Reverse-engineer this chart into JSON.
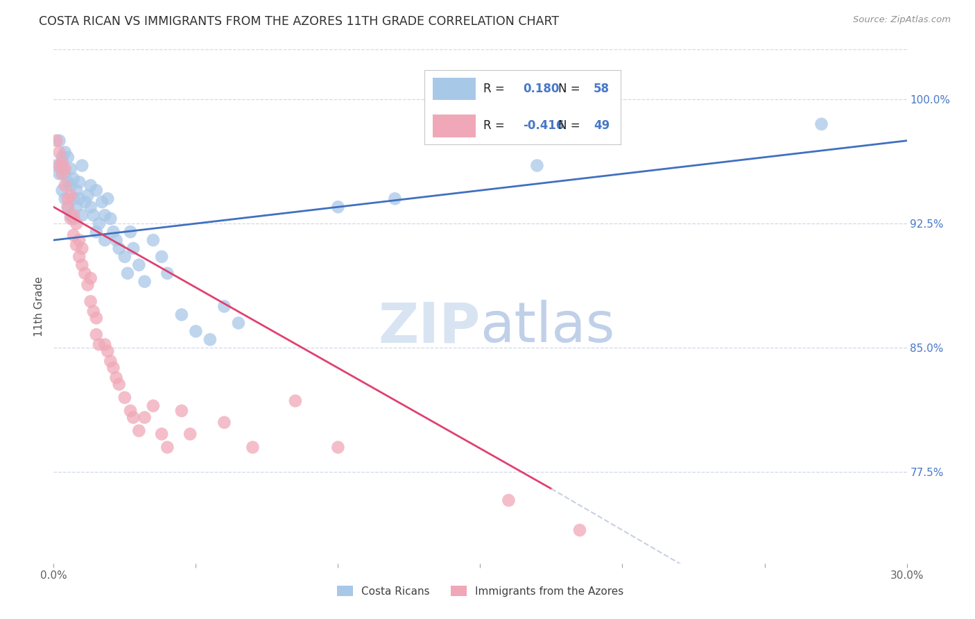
{
  "title": "COSTA RICAN VS IMMIGRANTS FROM THE AZORES 11TH GRADE CORRELATION CHART",
  "source": "Source: ZipAtlas.com",
  "ylabel": "11th Grade",
  "ytick_labels": [
    "100.0%",
    "92.5%",
    "85.0%",
    "77.5%"
  ],
  "ytick_values": [
    1.0,
    0.925,
    0.85,
    0.775
  ],
  "xlim": [
    0.0,
    0.3
  ],
  "ylim": [
    0.72,
    1.03
  ],
  "legend_r_blue": "0.180",
  "legend_n_blue": "58",
  "legend_r_pink": "-0.416",
  "legend_n_pink": "49",
  "blue_color": "#a8c8e8",
  "pink_color": "#f0a8b8",
  "blue_line_color": "#4070c0",
  "pink_line_color": "#e04070",
  "dashed_line_color": "#c8d0e0",
  "grid_color": "#d0d8e8",
  "title_color": "#303030",
  "right_axis_color": "#4878c8",
  "legend_text_color": "#202020",
  "source_color": "#909090",
  "ylabel_color": "#505050",
  "xtick_color": "#606060",
  "blue_scatter": [
    [
      0.001,
      0.96
    ],
    [
      0.002,
      0.955
    ],
    [
      0.002,
      0.975
    ],
    [
      0.003,
      0.965
    ],
    [
      0.003,
      0.958
    ],
    [
      0.003,
      0.945
    ],
    [
      0.004,
      0.955
    ],
    [
      0.004,
      0.94
    ],
    [
      0.004,
      0.968
    ],
    [
      0.005,
      0.95
    ],
    [
      0.005,
      0.935
    ],
    [
      0.005,
      0.965
    ],
    [
      0.006,
      0.948
    ],
    [
      0.006,
      0.93
    ],
    [
      0.006,
      0.958
    ],
    [
      0.007,
      0.94
    ],
    [
      0.007,
      0.952
    ],
    [
      0.007,
      0.928
    ],
    [
      0.008,
      0.945
    ],
    [
      0.008,
      0.935
    ],
    [
      0.009,
      0.94
    ],
    [
      0.009,
      0.95
    ],
    [
      0.01,
      0.93
    ],
    [
      0.01,
      0.96
    ],
    [
      0.011,
      0.938
    ],
    [
      0.012,
      0.942
    ],
    [
      0.013,
      0.935
    ],
    [
      0.013,
      0.948
    ],
    [
      0.014,
      0.93
    ],
    [
      0.015,
      0.92
    ],
    [
      0.015,
      0.945
    ],
    [
      0.016,
      0.925
    ],
    [
      0.017,
      0.938
    ],
    [
      0.018,
      0.93
    ],
    [
      0.018,
      0.915
    ],
    [
      0.019,
      0.94
    ],
    [
      0.02,
      0.928
    ],
    [
      0.021,
      0.92
    ],
    [
      0.022,
      0.915
    ],
    [
      0.023,
      0.91
    ],
    [
      0.025,
      0.905
    ],
    [
      0.026,
      0.895
    ],
    [
      0.027,
      0.92
    ],
    [
      0.028,
      0.91
    ],
    [
      0.03,
      0.9
    ],
    [
      0.032,
      0.89
    ],
    [
      0.035,
      0.915
    ],
    [
      0.038,
      0.905
    ],
    [
      0.04,
      0.895
    ],
    [
      0.045,
      0.87
    ],
    [
      0.05,
      0.86
    ],
    [
      0.055,
      0.855
    ],
    [
      0.06,
      0.875
    ],
    [
      0.065,
      0.865
    ],
    [
      0.1,
      0.935
    ],
    [
      0.12,
      0.94
    ],
    [
      0.17,
      0.96
    ],
    [
      0.27,
      0.985
    ]
  ],
  "pink_scatter": [
    [
      0.001,
      0.975
    ],
    [
      0.002,
      0.968
    ],
    [
      0.002,
      0.96
    ],
    [
      0.003,
      0.955
    ],
    [
      0.003,
      0.962
    ],
    [
      0.004,
      0.948
    ],
    [
      0.004,
      0.958
    ],
    [
      0.005,
      0.94
    ],
    [
      0.005,
      0.935
    ],
    [
      0.006,
      0.942
    ],
    [
      0.006,
      0.928
    ],
    [
      0.007,
      0.93
    ],
    [
      0.007,
      0.918
    ],
    [
      0.008,
      0.925
    ],
    [
      0.008,
      0.912
    ],
    [
      0.009,
      0.905
    ],
    [
      0.009,
      0.915
    ],
    [
      0.01,
      0.9
    ],
    [
      0.01,
      0.91
    ],
    [
      0.011,
      0.895
    ],
    [
      0.012,
      0.888
    ],
    [
      0.013,
      0.892
    ],
    [
      0.013,
      0.878
    ],
    [
      0.014,
      0.872
    ],
    [
      0.015,
      0.868
    ],
    [
      0.015,
      0.858
    ],
    [
      0.016,
      0.852
    ],
    [
      0.018,
      0.852
    ],
    [
      0.019,
      0.848
    ],
    [
      0.02,
      0.842
    ],
    [
      0.021,
      0.838
    ],
    [
      0.022,
      0.832
    ],
    [
      0.023,
      0.828
    ],
    [
      0.025,
      0.82
    ],
    [
      0.027,
      0.812
    ],
    [
      0.028,
      0.808
    ],
    [
      0.03,
      0.8
    ],
    [
      0.032,
      0.808
    ],
    [
      0.035,
      0.815
    ],
    [
      0.038,
      0.798
    ],
    [
      0.04,
      0.79
    ],
    [
      0.045,
      0.812
    ],
    [
      0.048,
      0.798
    ],
    [
      0.06,
      0.805
    ],
    [
      0.07,
      0.79
    ],
    [
      0.085,
      0.818
    ],
    [
      0.1,
      0.79
    ],
    [
      0.16,
      0.758
    ],
    [
      0.185,
      0.74
    ]
  ],
  "blue_line_x": [
    0.0,
    0.3
  ],
  "blue_line_y": [
    0.915,
    0.975
  ],
  "pink_line_x": [
    0.0,
    0.175
  ],
  "pink_line_y": [
    0.935,
    0.765
  ],
  "dashed_line_x": [
    0.175,
    0.3
  ],
  "dashed_line_y": [
    0.765,
    0.64
  ]
}
